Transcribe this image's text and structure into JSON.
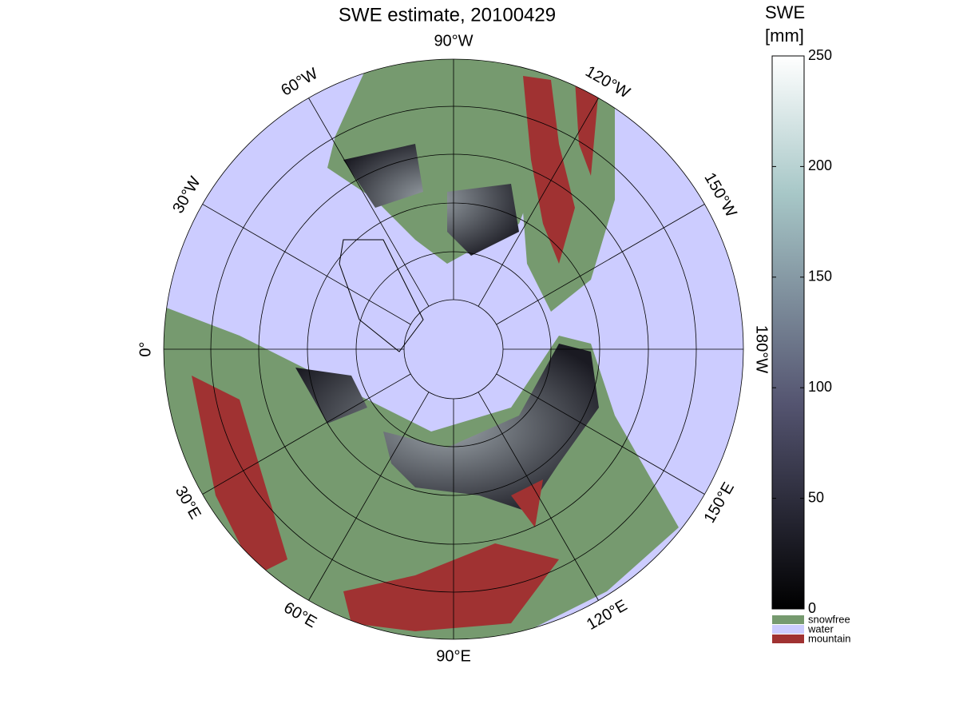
{
  "title": "SWE estimate, 20100429",
  "meridians": [
    {
      "value": -90,
      "label": "90°W"
    },
    {
      "value": -120,
      "label": "120°W"
    },
    {
      "value": -150,
      "label": "150°W"
    },
    {
      "value": 180,
      "label": "180°W"
    },
    {
      "value": 150,
      "label": "150°E"
    },
    {
      "value": 120,
      "label": "120°E"
    },
    {
      "value": 90,
      "label": "90°E"
    },
    {
      "value": 60,
      "label": "60°E"
    },
    {
      "value": 30,
      "label": "30°E"
    },
    {
      "value": 0,
      "label": "0°"
    },
    {
      "value": -30,
      "label": "30°W"
    },
    {
      "value": -60,
      "label": "60°W"
    }
  ],
  "colorbar": {
    "title": [
      "SWE",
      "[mm]"
    ],
    "lim": [
      0,
      250
    ],
    "ticks": [
      0,
      50,
      100,
      150,
      200,
      250
    ]
  },
  "legend": [
    {
      "name": "snowfree",
      "color": "#769a6f"
    },
    {
      "name": "water",
      "color": "#ccccff"
    },
    {
      "name": "mountain",
      "color": "#a03232"
    }
  ]
}
